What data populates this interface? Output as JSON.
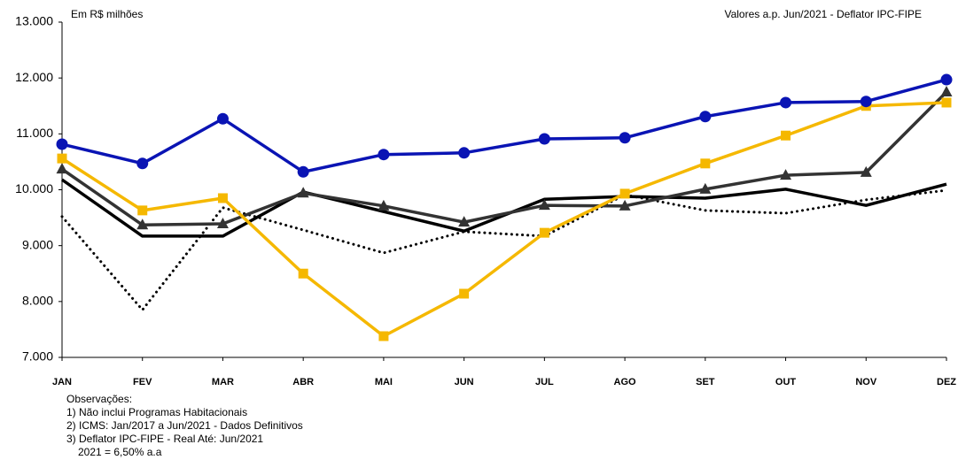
{
  "chart_data": {
    "type": "line",
    "annotations": [
      "Em R$ milhões",
      "Valores a.p. Jun/2021 - Deflator IPC-FIPE"
    ],
    "notes": [
      "Observações:",
      "1) Não inclui Programas Habitacionais",
      "2) ICMS: Jan/2017 a Jun/2021 - Dados Definitivos",
      "3) Deflator IPC-FIPE - Real Até: Jun/2021",
      "2021 = 6,50% a.a"
    ],
    "categories": [
      "JAN",
      "FEV",
      "MAR",
      "ABR",
      "MAI",
      "JUN",
      "JUL",
      "AGO",
      "SET",
      "OUT",
      "NOV",
      "DEZ"
    ],
    "ylim": [
      7000,
      13000
    ],
    "yticks": [
      {
        "value": 7000,
        "label": "7.000"
      },
      {
        "value": 8000,
        "label": "8.000"
      },
      {
        "value": 9000,
        "label": "9.000"
      },
      {
        "value": 10000,
        "label": "10.000"
      },
      {
        "value": 11000,
        "label": "11.000"
      },
      {
        "value": 12000,
        "label": "12.000"
      },
      {
        "value": 13000,
        "label": "13.000"
      }
    ],
    "series": [
      {
        "color": "#000000",
        "marker": "none",
        "dash": "dotted",
        "values": [
          9520,
          7850,
          9680,
          9280,
          8870,
          9250,
          9170,
          9910,
          9630,
          9580,
          9820,
          9990
        ]
      },
      {
        "color": "#000000",
        "marker": "none",
        "dash": "solid",
        "values": [
          10180,
          9170,
          9170,
          9960,
          9610,
          9260,
          9830,
          9880,
          9850,
          10010,
          9720,
          10100
        ]
      },
      {
        "color": "#333333",
        "marker": "triangle",
        "dash": "solid",
        "values": [
          10370,
          9370,
          9390,
          9940,
          9710,
          9420,
          9720,
          9710,
          10010,
          10260,
          10310,
          11750
        ]
      },
      {
        "color": "#f5b800",
        "marker": "square",
        "dash": "solid",
        "values": [
          10560,
          9630,
          9850,
          8500,
          7380,
          8140,
          9230,
          9930,
          10470,
          10970,
          11500,
          11560
        ]
      },
      {
        "color": "#0a14b4",
        "marker": "circle",
        "dash": "solid",
        "values": [
          10815,
          10470,
          11270,
          10320,
          10630,
          10660,
          10910,
          10930,
          11310,
          11560,
          11580,
          11970
        ]
      }
    ]
  }
}
